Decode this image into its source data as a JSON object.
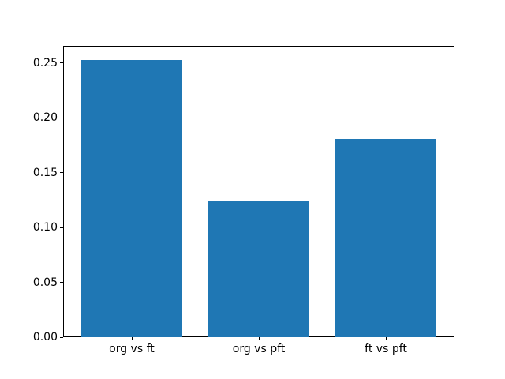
{
  "chart_data": {
    "type": "bar",
    "categories": [
      "org vs ft",
      "org vs pft",
      "ft vs pft"
    ],
    "values": [
      0.253,
      0.124,
      0.181
    ],
    "title": "",
    "xlabel": "",
    "ylabel": "",
    "ylim": [
      0,
      0.2656
    ],
    "yticks": [
      0,
      0.05,
      0.1,
      0.15,
      0.2,
      0.25
    ],
    "ytick_labels": [
      "0.00",
      "0.05",
      "0.10",
      "0.15",
      "0.20",
      "0.25"
    ],
    "bar_color": "#1f77b4",
    "spine_color": "#000000",
    "background_color": "#ffffff",
    "grid": false,
    "legend": null
  }
}
